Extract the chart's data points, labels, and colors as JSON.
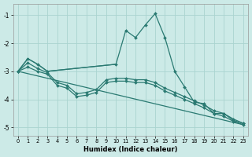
{
  "xlabel": "Humidex (Indice chaleur)",
  "background_color": "#cceae7",
  "grid_color": "#aad4d0",
  "line_color": "#2a7a72",
  "xlim": [
    -0.5,
    23.5
  ],
  "ylim": [
    -5.3,
    -0.6
  ],
  "yticks": [
    -5,
    -4,
    -3,
    -2,
    -1
  ],
  "xticks": [
    0,
    1,
    2,
    3,
    4,
    5,
    6,
    7,
    8,
    9,
    10,
    11,
    12,
    13,
    14,
    15,
    16,
    17,
    18,
    19,
    20,
    21,
    22,
    23
  ],
  "series": [
    {
      "x": [
        0,
        1,
        2,
        3,
        10,
        11,
        12,
        13,
        14,
        15,
        16,
        17,
        18,
        19,
        20,
        21,
        22,
        23
      ],
      "y": [
        -3.0,
        -2.55,
        -2.75,
        -3.0,
        -2.75,
        -1.55,
        -1.8,
        -1.35,
        -0.95,
        -1.8,
        -3.0,
        -3.55,
        -4.1,
        -4.15,
        -4.5,
        -4.5,
        -4.75,
        -4.85
      ],
      "marker": true,
      "markersize": 2.0,
      "linewidth": 0.9
    },
    {
      "x": [
        0,
        1,
        2,
        3,
        10
      ],
      "y": [
        -3.0,
        -2.55,
        -2.75,
        -3.0,
        -2.75
      ],
      "marker": false,
      "markersize": 0,
      "linewidth": 0.9
    },
    {
      "x": [
        0,
        1,
        2,
        3,
        4,
        5,
        6,
        7,
        8,
        9,
        10,
        11,
        12,
        13,
        14,
        15,
        16,
        17,
        18,
        19,
        20,
        21,
        22,
        23
      ],
      "y": [
        -3.0,
        -2.7,
        -2.9,
        -3.05,
        -3.4,
        -3.5,
        -3.8,
        -3.75,
        -3.65,
        -3.3,
        -3.25,
        -3.25,
        -3.3,
        -3.3,
        -3.4,
        -3.6,
        -3.75,
        -3.9,
        -4.05,
        -4.2,
        -4.4,
        -4.5,
        -4.7,
        -4.85
      ],
      "marker": true,
      "markersize": 2.0,
      "linewidth": 0.9
    },
    {
      "x": [
        0,
        1,
        2,
        3,
        4,
        5,
        6,
        7,
        8,
        9,
        10,
        11,
        12,
        13,
        14,
        15,
        16,
        17,
        18,
        19,
        20,
        21,
        22,
        23
      ],
      "y": [
        -3.0,
        -2.85,
        -3.0,
        -3.1,
        -3.5,
        -3.6,
        -3.9,
        -3.85,
        -3.75,
        -3.4,
        -3.35,
        -3.35,
        -3.4,
        -3.4,
        -3.5,
        -3.7,
        -3.85,
        -4.0,
        -4.15,
        -4.3,
        -4.5,
        -4.6,
        -4.78,
        -4.9
      ],
      "marker": true,
      "markersize": 2.0,
      "linewidth": 0.9
    },
    {
      "x": [
        0,
        23
      ],
      "y": [
        -3.0,
        -4.9
      ],
      "marker": false,
      "markersize": 0,
      "linewidth": 0.9
    }
  ]
}
